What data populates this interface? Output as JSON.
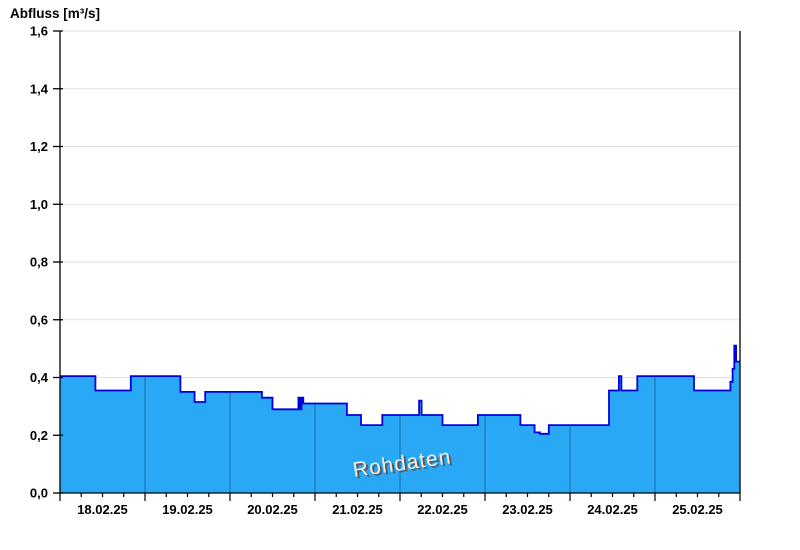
{
  "header": {
    "title": "Abfluss [m³/s]"
  },
  "chart_data": {
    "type": "area",
    "title": "Abfluss [m³/s]",
    "ylabel": "Abfluss [m³/s]",
    "xlabel": "",
    "watermark": "Rohdaten",
    "legend": "none",
    "grid": "horizontal light-gray lines every 0.2; vertical day-separator lines visible only inside filled area",
    "ylim": [
      0,
      1.6
    ],
    "y_tick_step": 0.2,
    "y_tick_labels": [
      "0,0",
      "0,2",
      "0,4",
      "0,6",
      "0,8",
      "1,0",
      "1,2",
      "1,4",
      "1,6"
    ],
    "x_day_labels": [
      "18.02.25",
      "19.02.25",
      "20.02.25",
      "21.02.25",
      "22.02.25",
      "23.02.25",
      "24.02.25",
      "25.02.25"
    ],
    "x_total_hours": 192,
    "x_major_tick_hours": 24,
    "x_minor_tick_hours": 6,
    "series": [
      {
        "name": "Rohdaten",
        "unit": "m³/s",
        "steps_hour_value": [
          [
            0,
            0.405
          ],
          [
            10,
            0.355
          ],
          [
            20,
            0.405
          ],
          [
            34,
            0.35
          ],
          [
            38,
            0.315
          ],
          [
            41,
            0.35
          ],
          [
            57,
            0.33
          ],
          [
            60,
            0.29
          ],
          [
            67.3,
            0.33
          ],
          [
            67.8,
            0.29
          ],
          [
            68.2,
            0.33
          ],
          [
            68.7,
            0.31
          ],
          [
            81,
            0.27
          ],
          [
            85,
            0.235
          ],
          [
            91,
            0.27
          ],
          [
            101.4,
            0.32
          ],
          [
            102.1,
            0.27
          ],
          [
            108,
            0.235
          ],
          [
            118,
            0.27
          ],
          [
            130,
            0.235
          ],
          [
            134,
            0.21
          ],
          [
            135.5,
            0.205
          ],
          [
            138,
            0.235
          ],
          [
            155,
            0.355
          ],
          [
            157.8,
            0.405
          ],
          [
            158.5,
            0.355
          ],
          [
            163,
            0.405
          ],
          [
            179,
            0.355
          ],
          [
            189.3,
            0.385
          ],
          [
            189.9,
            0.43
          ],
          [
            190.4,
            0.51
          ],
          [
            190.9,
            0.455
          ]
        ]
      }
    ],
    "colors": {
      "area_fill": "#29a9f5",
      "line": "#0000dd",
      "grid": "#e2e2e2",
      "day_separator": "#1d76ab",
      "axis": "#000000",
      "tick_label": "#000000",
      "watermark_fill": "#ededed",
      "watermark_shadow": "#5a5a5a"
    }
  }
}
